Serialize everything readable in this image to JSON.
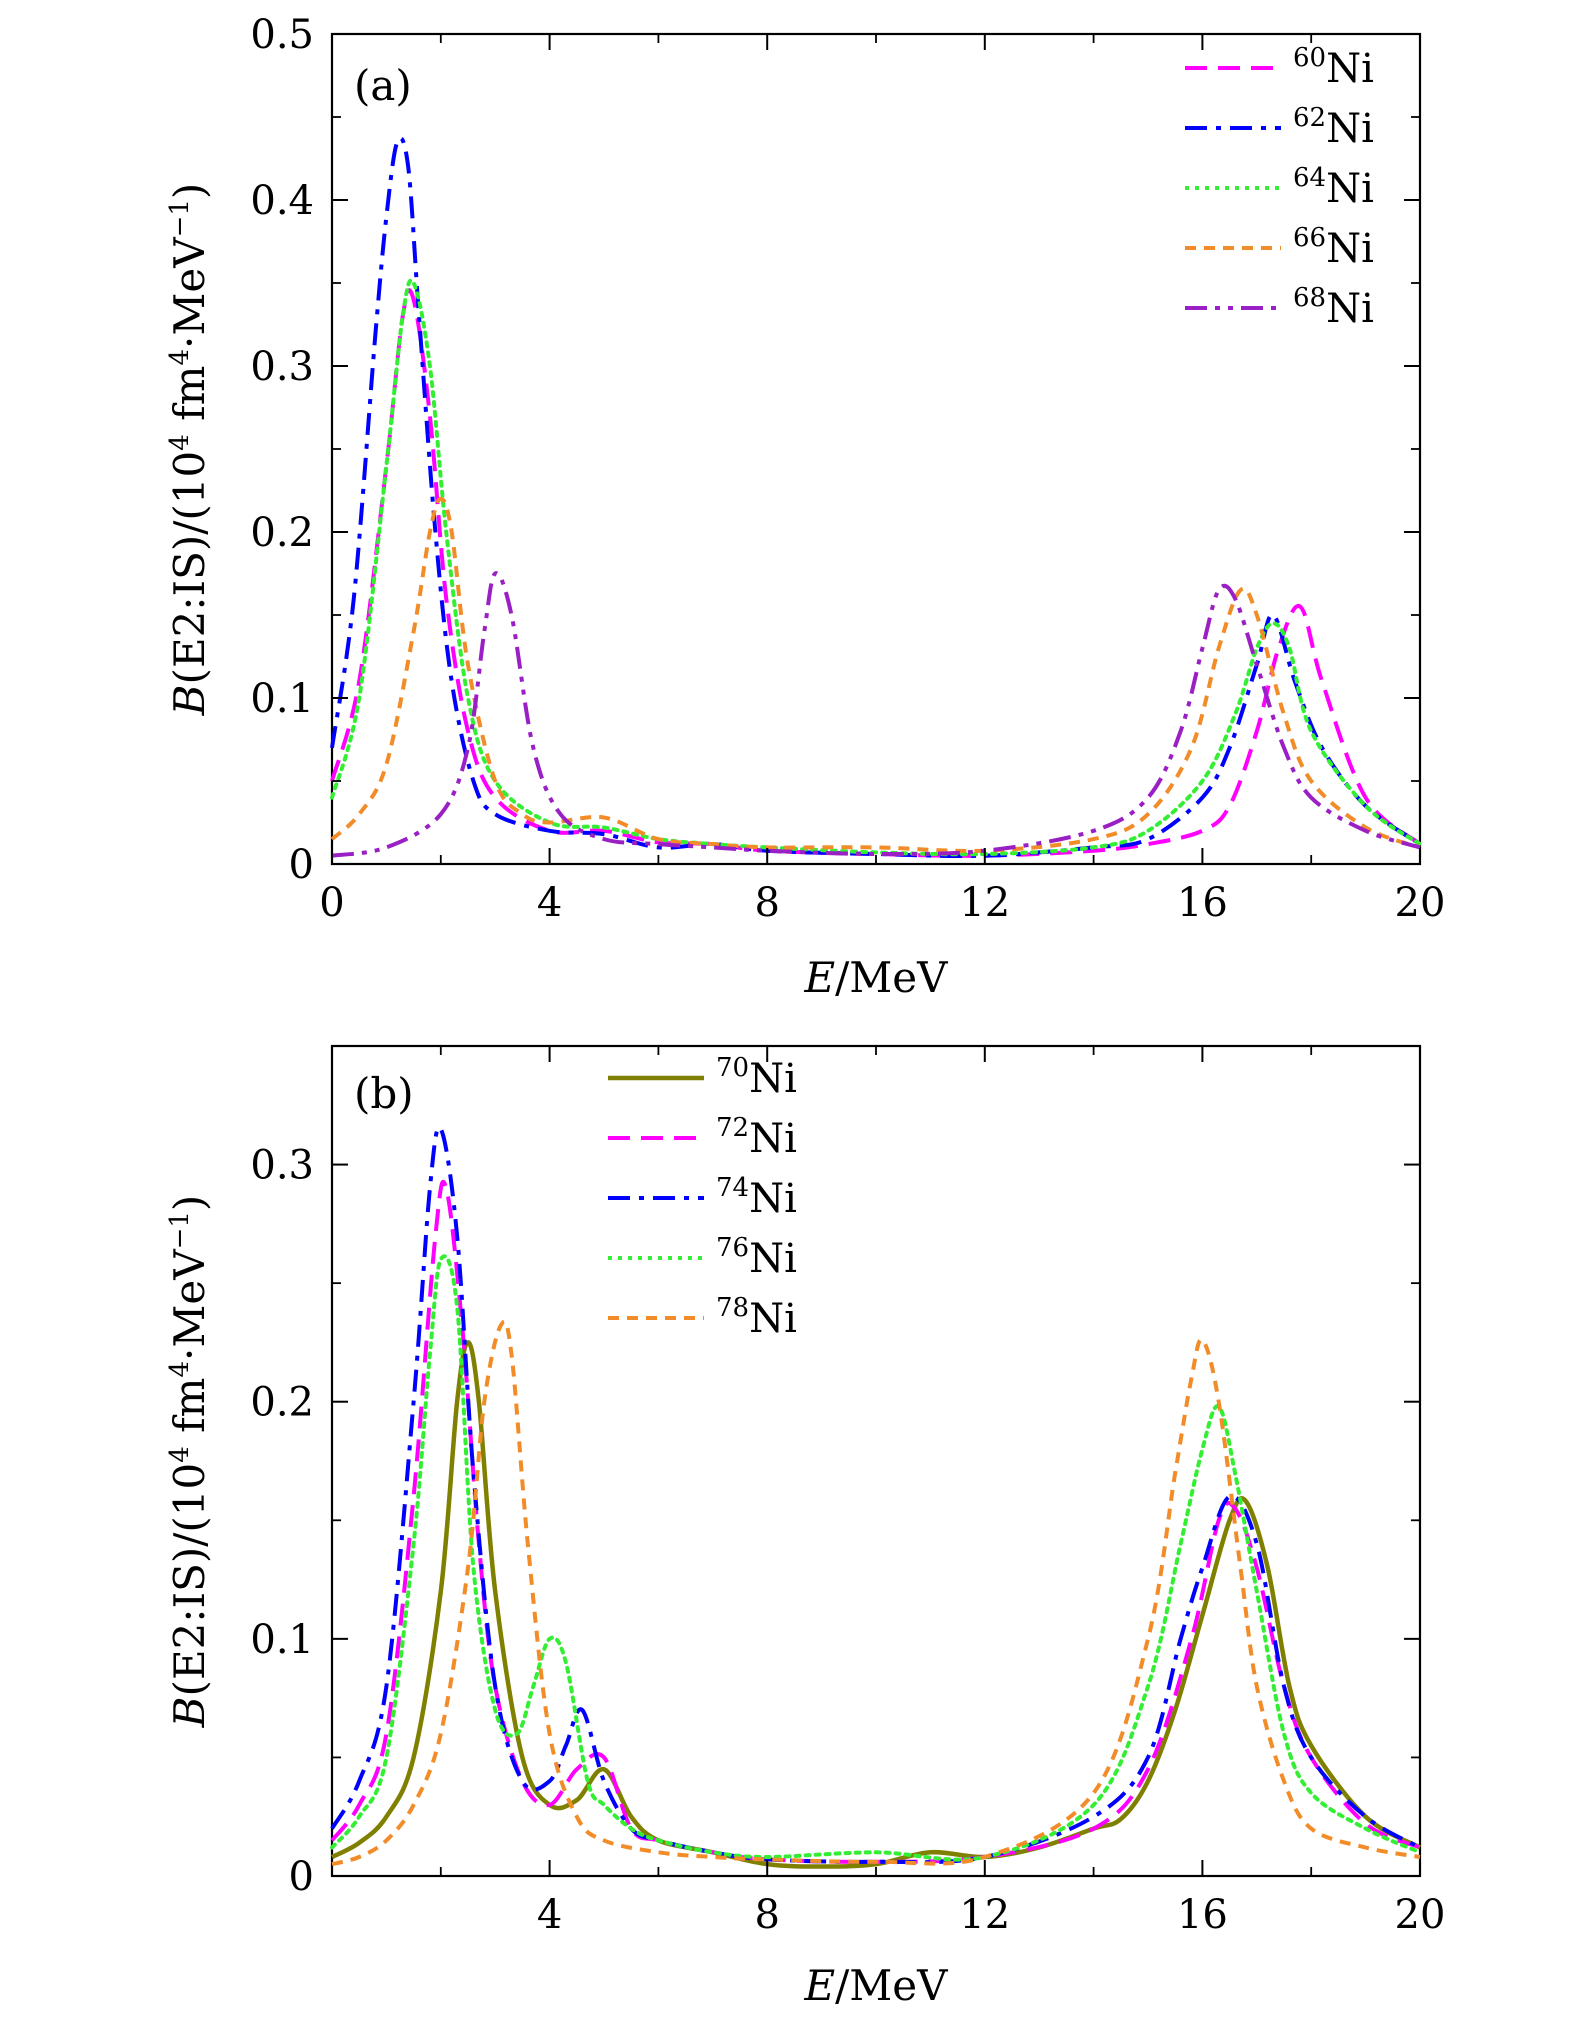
{
  "chart_data": [
    {
      "type": "line",
      "panel_label": "(a)",
      "xlabel": "E/MeV",
      "ylabel": "B(E2:IS)/(10^4 fm^4·MeV^-1)",
      "xlim": [
        0,
        20
      ],
      "ylim": [
        0,
        0.5
      ],
      "xticks": [
        0,
        4,
        8,
        12,
        16,
        20
      ],
      "xtick_labels": [
        "0",
        "4",
        "8",
        "12",
        "16",
        "20"
      ],
      "yticks": [
        0,
        0.1,
        0.2,
        0.3,
        0.4,
        0.5
      ],
      "ytick_labels": [
        "0",
        "0.1",
        "0.2",
        "0.3",
        "0.4",
        "0.5"
      ],
      "legend_position": "top-right",
      "series": [
        {
          "name": "60Ni",
          "mass_number": "60",
          "element": "Ni",
          "color": "#ff00ff",
          "style": "dash",
          "x": [
            0,
            0.5,
            1.0,
            1.3,
            1.5,
            1.8,
            2.1,
            2.5,
            3.0,
            4.0,
            5.0,
            6.0,
            7.0,
            8.0,
            10.0,
            12.0,
            14.0,
            15.0,
            16.0,
            16.5,
            17.0,
            17.4,
            17.8,
            18.2,
            19.0,
            20.0
          ],
          "y": [
            0.05,
            0.11,
            0.24,
            0.33,
            0.34,
            0.27,
            0.16,
            0.08,
            0.04,
            0.02,
            0.02,
            0.013,
            0.012,
            0.008,
            0.006,
            0.005,
            0.008,
            0.012,
            0.02,
            0.035,
            0.08,
            0.13,
            0.155,
            0.11,
            0.04,
            0.012
          ]
        },
        {
          "name": "62Ni",
          "mass_number": "62",
          "element": "Ni",
          "color": "#0000ff",
          "style": "dashdot",
          "x": [
            0,
            0.4,
            0.8,
            1.0,
            1.2,
            1.4,
            1.6,
            1.9,
            2.2,
            2.6,
            3.0,
            4.0,
            5.0,
            6.0,
            7.0,
            8.0,
            10.0,
            12.0,
            14.0,
            15.0,
            16.0,
            16.5,
            17.0,
            17.3,
            17.7,
            18.2,
            19.0,
            20.0
          ],
          "y": [
            0.07,
            0.16,
            0.32,
            0.39,
            0.435,
            0.42,
            0.33,
            0.2,
            0.11,
            0.05,
            0.03,
            0.02,
            0.018,
            0.01,
            0.012,
            0.008,
            0.006,
            0.005,
            0.01,
            0.015,
            0.04,
            0.07,
            0.12,
            0.15,
            0.11,
            0.07,
            0.035,
            0.012
          ]
        },
        {
          "name": "64Ni",
          "mass_number": "64",
          "element": "Ni",
          "color": "#33ee33",
          "style": "dot",
          "x": [
            0,
            0.5,
            1.0,
            1.3,
            1.5,
            1.8,
            2.1,
            2.5,
            3.0,
            4.0,
            5.0,
            6.0,
            7.0,
            8.0,
            10.0,
            12.0,
            14.0,
            15.0,
            16.0,
            16.6,
            17.0,
            17.3,
            17.6,
            18.0,
            19.0,
            20.0
          ],
          "y": [
            0.04,
            0.1,
            0.24,
            0.33,
            0.35,
            0.3,
            0.2,
            0.1,
            0.05,
            0.025,
            0.022,
            0.015,
            0.012,
            0.01,
            0.007,
            0.006,
            0.01,
            0.02,
            0.05,
            0.09,
            0.13,
            0.145,
            0.13,
            0.08,
            0.035,
            0.012
          ]
        },
        {
          "name": "66Ni",
          "mass_number": "66",
          "element": "Ni",
          "color": "#f28c28",
          "style": "shortdash",
          "x": [
            0,
            0.5,
            1.0,
            1.5,
            1.8,
            2.0,
            2.2,
            2.5,
            3.0,
            3.5,
            4.0,
            5.0,
            6.0,
            7.0,
            8.0,
            10.0,
            12.0,
            14.0,
            15.0,
            15.8,
            16.3,
            16.7,
            17.0,
            17.5,
            18.0,
            19.0,
            20.0
          ],
          "y": [
            0.015,
            0.03,
            0.06,
            0.14,
            0.2,
            0.22,
            0.2,
            0.12,
            0.05,
            0.03,
            0.025,
            0.028,
            0.015,
            0.012,
            0.01,
            0.01,
            0.008,
            0.015,
            0.03,
            0.07,
            0.13,
            0.165,
            0.15,
            0.09,
            0.05,
            0.022,
            0.01
          ]
        },
        {
          "name": "68Ni",
          "mass_number": "68",
          "element": "Ni",
          "color": "#9a1fc4",
          "style": "dashdotdot",
          "x": [
            0,
            1.0,
            2.0,
            2.5,
            2.8,
            3.0,
            3.3,
            3.7,
            4.2,
            5.0,
            6.0,
            7.0,
            8.0,
            10.0,
            12.0,
            14.0,
            15.0,
            15.6,
            16.0,
            16.3,
            16.6,
            17.0,
            17.5,
            18.0,
            19.0,
            20.0
          ],
          "y": [
            0.005,
            0.01,
            0.03,
            0.07,
            0.14,
            0.175,
            0.15,
            0.07,
            0.03,
            0.015,
            0.012,
            0.01,
            0.008,
            0.006,
            0.008,
            0.02,
            0.04,
            0.08,
            0.13,
            0.165,
            0.16,
            0.12,
            0.07,
            0.04,
            0.02,
            0.01
          ]
        }
      ]
    },
    {
      "type": "line",
      "panel_label": "(b)",
      "xlabel": "E/MeV",
      "ylabel": "B(E2:IS)/(10^4 fm^4·MeV^-1)",
      "xlim": [
        0,
        20
      ],
      "ylim": [
        0,
        0.35
      ],
      "xticks": [
        4,
        8,
        12,
        16,
        20
      ],
      "xtick_labels": [
        "4",
        "8",
        "12",
        "16",
        "20"
      ],
      "yticks": [
        0,
        0.1,
        0.2,
        0.3
      ],
      "ytick_labels": [
        "0",
        "0.1",
        "0.2",
        "0.3"
      ],
      "legend_position": "top-center",
      "series": [
        {
          "name": "70Ni",
          "mass_number": "70",
          "element": "Ni",
          "color": "#808000",
          "style": "solid",
          "x": [
            0,
            0.5,
            1.0,
            1.5,
            2.0,
            2.3,
            2.5,
            2.7,
            3.0,
            3.5,
            4.0,
            4.5,
            5.0,
            5.5,
            6.0,
            7.0,
            8.0,
            9.0,
            10.0,
            11.0,
            12.0,
            13.0,
            14.0,
            14.5,
            15.0,
            15.5,
            16.0,
            16.5,
            16.8,
            17.2,
            17.6,
            18.0,
            19.0,
            20.0
          ],
          "y": [
            0.008,
            0.014,
            0.025,
            0.05,
            0.12,
            0.2,
            0.225,
            0.2,
            0.12,
            0.05,
            0.03,
            0.032,
            0.045,
            0.025,
            0.015,
            0.01,
            0.005,
            0.004,
            0.005,
            0.01,
            0.008,
            0.012,
            0.02,
            0.024,
            0.04,
            0.07,
            0.11,
            0.15,
            0.158,
            0.13,
            0.08,
            0.055,
            0.025,
            0.012
          ]
        },
        {
          "name": "72Ni",
          "mass_number": "72",
          "element": "Ni",
          "color": "#ff00ff",
          "style": "dash",
          "x": [
            0,
            0.5,
            1.0,
            1.5,
            1.9,
            2.1,
            2.4,
            2.7,
            3.0,
            3.5,
            4.0,
            4.5,
            5.0,
            5.5,
            6.0,
            7.0,
            8.0,
            10.0,
            12.0,
            14.0,
            15.0,
            15.8,
            16.3,
            16.6,
            17.0,
            17.5,
            18.0,
            19.0,
            20.0
          ],
          "y": [
            0.015,
            0.03,
            0.06,
            0.16,
            0.27,
            0.29,
            0.23,
            0.14,
            0.08,
            0.04,
            0.03,
            0.045,
            0.05,
            0.02,
            0.015,
            0.01,
            0.007,
            0.006,
            0.008,
            0.02,
            0.045,
            0.1,
            0.15,
            0.155,
            0.13,
            0.08,
            0.05,
            0.022,
            0.012
          ]
        },
        {
          "name": "74Ni",
          "mass_number": "74",
          "element": "Ni",
          "color": "#0000ff",
          "style": "dashdot",
          "x": [
            0,
            0.5,
            1.0,
            1.5,
            1.8,
            2.0,
            2.3,
            2.6,
            3.0,
            3.5,
            4.0,
            4.3,
            4.6,
            5.0,
            5.5,
            6.0,
            7.0,
            8.0,
            10.0,
            12.0,
            14.0,
            15.0,
            15.6,
            16.0,
            16.5,
            17.0,
            17.5,
            18.0,
            19.0,
            20.0
          ],
          "y": [
            0.02,
            0.04,
            0.08,
            0.2,
            0.29,
            0.315,
            0.27,
            0.17,
            0.08,
            0.04,
            0.04,
            0.055,
            0.07,
            0.04,
            0.02,
            0.015,
            0.01,
            0.007,
            0.006,
            0.008,
            0.025,
            0.05,
            0.1,
            0.13,
            0.16,
            0.14,
            0.08,
            0.05,
            0.025,
            0.012
          ]
        },
        {
          "name": "76Ni",
          "mass_number": "76",
          "element": "Ni",
          "color": "#33ee33",
          "style": "dot",
          "x": [
            0,
            0.5,
            1.0,
            1.5,
            1.8,
            2.0,
            2.3,
            2.6,
            3.0,
            3.4,
            3.7,
            4.0,
            4.3,
            4.7,
            5.0,
            5.5,
            6.0,
            7.0,
            8.0,
            10.0,
            12.0,
            14.0,
            15.0,
            15.6,
            16.0,
            16.3,
            16.6,
            17.0,
            17.5,
            18.0,
            19.0,
            20.0
          ],
          "y": [
            0.012,
            0.025,
            0.05,
            0.14,
            0.22,
            0.26,
            0.24,
            0.13,
            0.07,
            0.06,
            0.08,
            0.1,
            0.09,
            0.04,
            0.03,
            0.02,
            0.015,
            0.01,
            0.008,
            0.01,
            0.008,
            0.03,
            0.08,
            0.14,
            0.18,
            0.198,
            0.17,
            0.12,
            0.06,
            0.035,
            0.02,
            0.01
          ]
        },
        {
          "name": "78Ni",
          "mass_number": "78",
          "element": "Ni",
          "color": "#f28c28",
          "style": "shortdash",
          "x": [
            0,
            0.5,
            1.0,
            1.5,
            2.0,
            2.5,
            2.8,
            3.1,
            3.3,
            3.6,
            4.0,
            4.5,
            5.0,
            6.0,
            7.0,
            8.0,
            10.0,
            12.0,
            14.0,
            15.0,
            15.5,
            15.8,
            16.0,
            16.3,
            16.7,
            17.0,
            17.5,
            18.0,
            19.0,
            20.0
          ],
          "y": [
            0.005,
            0.008,
            0.015,
            0.03,
            0.06,
            0.13,
            0.2,
            0.232,
            0.22,
            0.14,
            0.06,
            0.025,
            0.015,
            0.01,
            0.008,
            0.007,
            0.006,
            0.008,
            0.035,
            0.1,
            0.17,
            0.21,
            0.226,
            0.2,
            0.13,
            0.08,
            0.04,
            0.02,
            0.012,
            0.008
          ]
        }
      ]
    }
  ]
}
